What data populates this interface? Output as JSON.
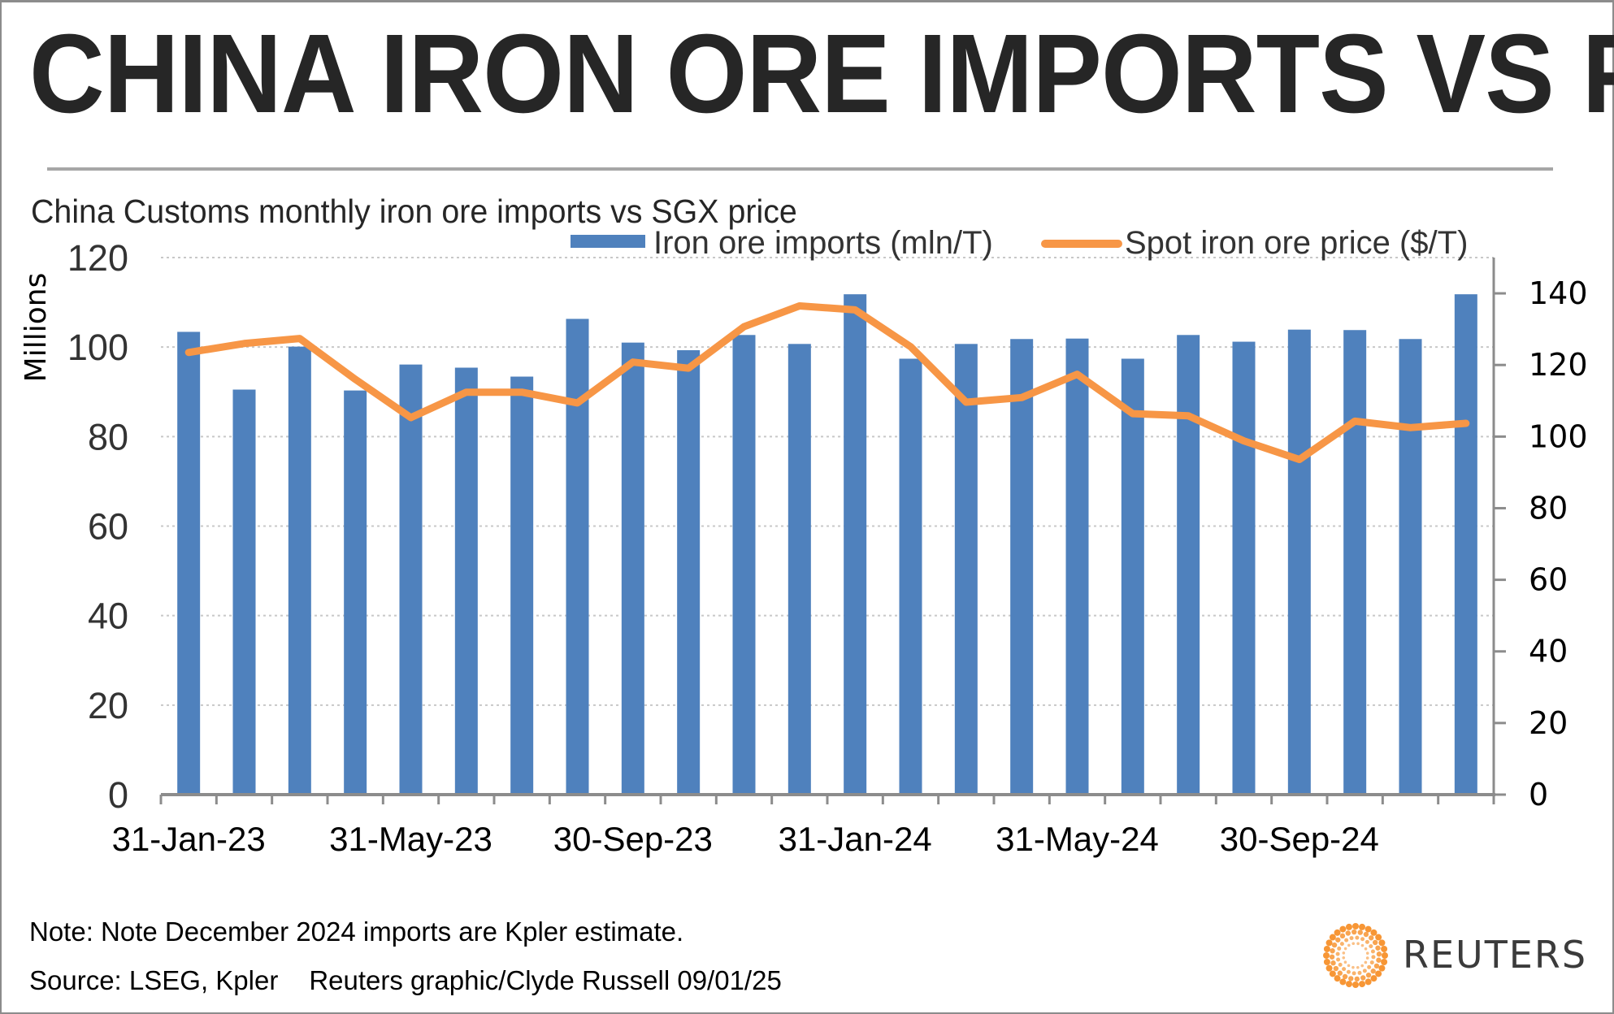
{
  "header": {
    "title": "CHINA IRON ORE IMPORTS VS PRICE",
    "subtitle": "China Customs monthly iron ore imports vs SGX price"
  },
  "footer": {
    "note": "Note: Note December 2024 imports are Kpler estimate.",
    "source": "Source: LSEG, Kpler",
    "credit": "Reuters graphic/Clyde Russell 09/01/25",
    "logo_text": "REUTERS",
    "logo_icon": "reuters-dotted-circle-icon"
  },
  "colors": {
    "bars": "#4f81bd",
    "line": "#f79646",
    "gridline": "#c8c8c8",
    "axis": "#8c8c8c",
    "title": "#262626",
    "logo": "#f68b1f"
  },
  "chart_data": {
    "type": "bar+line",
    "title": "CHINA IRON ORE IMPORTS VS PRICE",
    "subtitle": "China Customs monthly iron ore imports vs SGX price",
    "categories": [
      "Jan-23",
      "Feb-23",
      "Mar-23",
      "Apr-23",
      "May-23",
      "Jun-23",
      "Jul-23",
      "Aug-23",
      "Sep-23",
      "Oct-23",
      "Nov-23",
      "Dec-23",
      "Jan-24",
      "Feb-24",
      "Mar-24",
      "Apr-24",
      "May-24",
      "Jun-24",
      "Jul-24",
      "Aug-24",
      "Sep-24",
      "Oct-24",
      "Nov-24",
      "Dec-24"
    ],
    "x_tick_labels": [
      {
        "index": 0,
        "label": "31-Jan-23"
      },
      {
        "index": 4,
        "label": "31-May-23"
      },
      {
        "index": 8,
        "label": "30-Sep-23"
      },
      {
        "index": 12,
        "label": "31-Jan-24"
      },
      {
        "index": 16,
        "label": "31-May-24"
      },
      {
        "index": 20,
        "label": "30-Sep-24"
      }
    ],
    "series": [
      {
        "name": "Iron ore imports (mln/T)",
        "type": "bar",
        "axis": "left",
        "values": [
          103.4,
          90.5,
          100.1,
          90.3,
          96.1,
          95.4,
          93.4,
          106.3,
          101.0,
          99.3,
          102.7,
          100.7,
          111.8,
          97.4,
          100.7,
          101.8,
          101.9,
          97.4,
          102.7,
          101.2,
          103.9,
          103.8,
          101.8,
          111.8
        ]
      },
      {
        "name": "Spot iron ore price ($/T)",
        "type": "line",
        "axis": "right",
        "values": [
          123.5,
          126.0,
          127.4,
          116.0,
          105.3,
          112.4,
          112.4,
          109.4,
          120.8,
          119.1,
          130.7,
          136.5,
          135.4,
          125.1,
          109.6,
          110.9,
          117.4,
          106.4,
          105.8,
          98.8,
          93.6,
          104.3,
          102.5,
          103.7
        ]
      }
    ],
    "y_left": {
      "label": "Millions",
      "min": 0,
      "max": 120,
      "ticks": [
        "0",
        "20",
        "40",
        "60",
        "80",
        "100",
        "120"
      ]
    },
    "y_right": {
      "label": "",
      "min": 0,
      "max": 150,
      "ticks": [
        "0",
        "20",
        "40",
        "60",
        "80",
        "100",
        "120",
        "140"
      ]
    },
    "grid": true,
    "legend": {
      "position": "top-right",
      "entries": [
        "Iron ore imports (mln/T)",
        "Spot iron ore price ($/T)"
      ]
    }
  }
}
